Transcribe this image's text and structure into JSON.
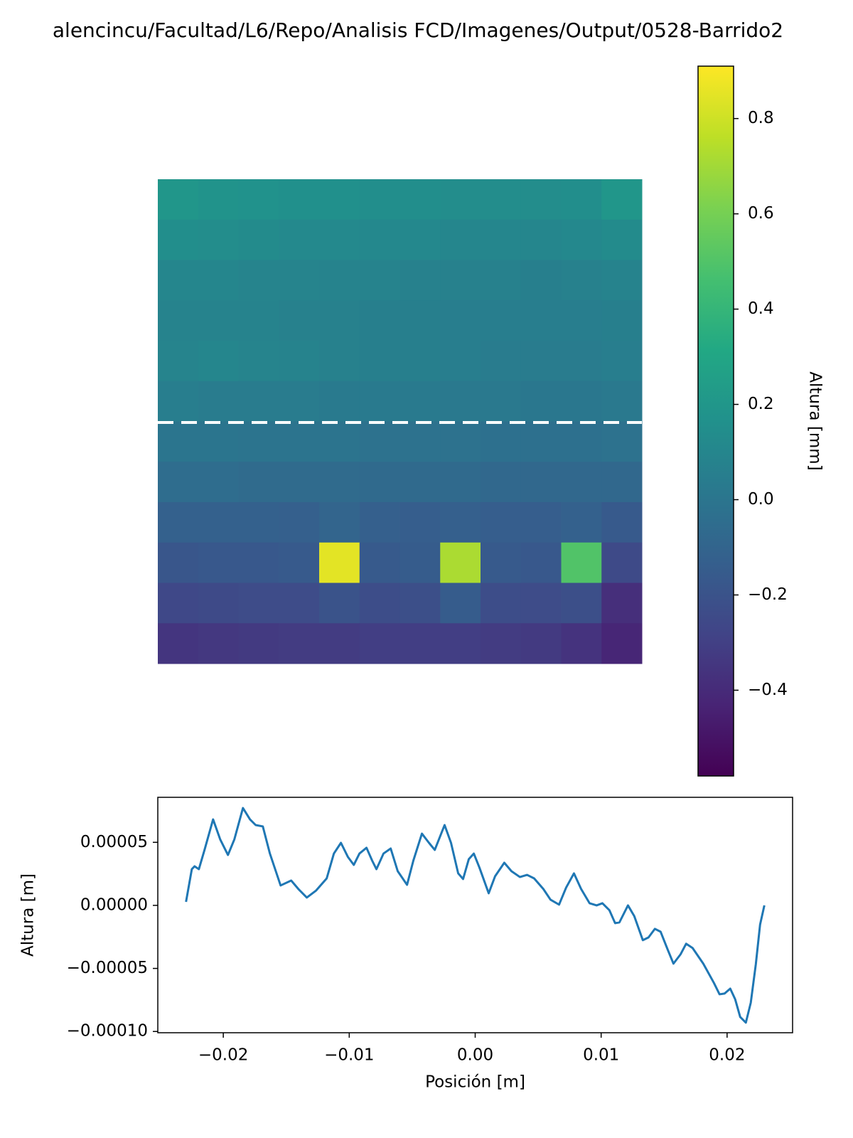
{
  "chart_data": [
    {
      "type": "heatmap",
      "title": "alencincu/Facultad/L6/Repo/Analisis FCD/Imagenes/Output/0528-Barrido2",
      "colormap": "viridis",
      "values": [
        [
          0.2,
          0.18,
          0.17,
          0.16,
          0.16,
          0.15,
          0.15,
          0.14,
          0.14,
          0.14,
          0.15,
          0.2
        ],
        [
          0.15,
          0.14,
          0.13,
          0.12,
          0.12,
          0.11,
          0.11,
          0.1,
          0.1,
          0.1,
          0.11,
          0.13
        ],
        [
          0.1,
          0.1,
          0.09,
          0.09,
          0.08,
          0.08,
          0.07,
          0.07,
          0.07,
          0.06,
          0.07,
          0.08
        ],
        [
          0.08,
          0.08,
          0.08,
          0.07,
          0.07,
          0.06,
          0.06,
          0.05,
          0.05,
          0.05,
          0.05,
          0.06
        ],
        [
          0.09,
          0.1,
          0.09,
          0.08,
          0.07,
          0.06,
          0.06,
          0.05,
          0.04,
          0.04,
          0.04,
          0.05
        ],
        [
          0.05,
          0.04,
          0.04,
          0.04,
          0.03,
          0.03,
          0.03,
          0.02,
          0.02,
          0.01,
          0.01,
          0.02
        ],
        [
          0,
          0,
          -0.01,
          -0.01,
          -0.01,
          -0.02,
          -0.02,
          -0.02,
          -0.03,
          -0.03,
          -0.03,
          -0.02
        ],
        [
          -0.05,
          -0.05,
          -0.06,
          -0.06,
          -0.06,
          -0.07,
          -0.07,
          -0.07,
          -0.08,
          -0.08,
          -0.08,
          -0.08
        ],
        [
          -0.12,
          -0.12,
          -0.12,
          -0.13,
          -0.1,
          -0.13,
          -0.14,
          -0.13,
          -0.14,
          -0.14,
          -0.12,
          -0.16
        ],
        [
          -0.18,
          -0.17,
          -0.17,
          -0.16,
          0.85,
          -0.16,
          -0.15,
          0.72,
          -0.16,
          -0.17,
          0.5,
          -0.25
        ],
        [
          -0.26,
          -0.25,
          -0.24,
          -0.24,
          -0.2,
          -0.23,
          -0.22,
          -0.15,
          -0.23,
          -0.24,
          -0.22,
          -0.38
        ],
        [
          -0.35,
          -0.34,
          -0.33,
          -0.32,
          -0.32,
          -0.31,
          -0.31,
          -0.31,
          -0.32,
          -0.33,
          -0.36,
          -0.42
        ]
      ],
      "clabel": "Altura [mm]",
      "clim": [
        -0.58,
        0.91
      ],
      "cticks": [
        {
          "value": -0.4,
          "label": "−0.4"
        },
        {
          "value": -0.2,
          "label": "−0.2"
        },
        {
          "value": 0.0,
          "label": "0.0"
        },
        {
          "value": 0.2,
          "label": "0.2"
        },
        {
          "value": 0.4,
          "label": "0.4"
        },
        {
          "value": 0.6,
          "label": "0.6"
        },
        {
          "value": 0.8,
          "label": "0.8"
        }
      ]
    },
    {
      "type": "line",
      "xlabel": "Posición [m]",
      "ylabel": "Altura [m]",
      "x": [
        -0.02296,
        -0.0225,
        -0.02228,
        -0.02194,
        -0.02149,
        -0.02081,
        -0.02025,
        -0.01963,
        -0.01912,
        -0.01844,
        -0.01788,
        -0.01743,
        -0.01686,
        -0.0163,
        -0.01545,
        -0.01461,
        -0.01404,
        -0.01337,
        -0.01263,
        -0.01179,
        -0.01122,
        -0.01066,
        -0.0101,
        -0.00964,
        -0.00919,
        -0.00863,
        -0.00818,
        -0.00784,
        -0.00728,
        -0.00671,
        -0.00615,
        -0.00541,
        -0.00491,
        -0.00423,
        -0.00367,
        -0.00321,
        -0.00243,
        -0.00192,
        -0.00135,
        -0.00096,
        -0.00051,
        -0.00011,
        0.00034,
        0.00107,
        0.00158,
        0.00231,
        0.00288,
        0.00355,
        0.00412,
        0.00468,
        0.00541,
        0.00598,
        0.00666,
        0.00722,
        0.00784,
        0.00841,
        0.00908,
        0.00964,
        0.0101,
        0.01066,
        0.01111,
        0.01145,
        0.01213,
        0.01263,
        0.01331,
        0.01376,
        0.01427,
        0.01472,
        0.01528,
        0.01574,
        0.0163,
        0.01675,
        0.01726,
        0.01811,
        0.01895,
        0.0194,
        0.0198,
        0.02025,
        0.02064,
        0.02104,
        0.02149,
        0.02188,
        0.02228,
        0.02262,
        0.02296
      ],
      "series": [
        {
          "color": "#1f77b4",
          "values": [
            2.8e-06,
            2.87e-05,
            3.1e-05,
            2.87e-05,
            4.4e-05,
            6.82e-05,
            5.24e-05,
            4e-05,
            5.24e-05,
            7.72e-05,
            6.82e-05,
            6.37e-05,
            6.26e-05,
            4.11e-05,
            1.58e-05,
            1.97e-05,
            1.3e-05,
            6.2e-06,
            1.18e-05,
            2.14e-05,
            4.11e-05,
            4.96e-05,
            3.83e-05,
            3.21e-05,
            4.11e-05,
            4.57e-05,
            3.55e-05,
            2.87e-05,
            4.11e-05,
            4.51e-05,
            2.71e-05,
            1.63e-05,
            3.55e-05,
            5.69e-05,
            4.96e-05,
            4.4e-05,
            6.37e-05,
            4.96e-05,
            2.54e-05,
            2.09e-05,
            3.66e-05,
            4.11e-05,
            2.99e-05,
            9.6e-06,
            2.31e-05,
            3.38e-05,
            2.71e-05,
            2.25e-05,
            2.42e-05,
            2.14e-05,
            1.3e-05,
            4.5e-06,
            6e-07,
            1.41e-05,
            2.54e-05,
            1.3e-05,
            1.7e-06,
            0,
            1.7e-06,
            -3.9e-06,
            -1.41e-05,
            -1.35e-05,
            0,
            -8.5e-06,
            -2.76e-05,
            -2.54e-05,
            -1.86e-05,
            -2.09e-05,
            -3.5e-05,
            -4.62e-05,
            -3.89e-05,
            -3.04e-05,
            -3.38e-05,
            -4.62e-05,
            -6.14e-05,
            -7.05e-05,
            -6.99e-05,
            -6.6e-05,
            -7.44e-05,
            -8.85e-05,
            -9.3e-05,
            -7.72e-05,
            -4.68e-05,
            -1.52e-05,
            0
          ]
        }
      ],
      "xlim": [
        -0.0252,
        0.0252
      ],
      "ylim": [
        -0.000101,
        8.57e-05
      ],
      "xticks": [
        {
          "value": -0.02,
          "label": "−0.02"
        },
        {
          "value": -0.01,
          "label": "−0.01"
        },
        {
          "value": 0,
          "label": "0.00"
        },
        {
          "value": 0.01,
          "label": "0.01"
        },
        {
          "value": 0.02,
          "label": "0.02"
        }
      ],
      "yticks": [
        {
          "value": -0.0001,
          "label": "−0.00010"
        },
        {
          "value": -5e-05,
          "label": "−0.00005"
        },
        {
          "value": 0,
          "label": "0.00000"
        },
        {
          "value": 5e-05,
          "label": "0.00005"
        }
      ]
    }
  ]
}
